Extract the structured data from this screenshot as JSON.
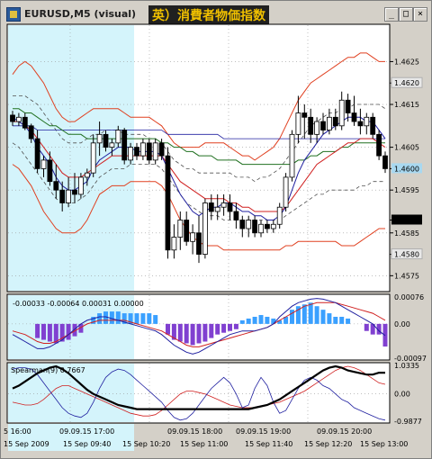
{
  "window": {
    "title": "EURUSD,M5 (visual)",
    "banner": "英）消費者物価指数",
    "buttons": {
      "minimize": "_",
      "maximize": "□",
      "close": "×"
    }
  },
  "colors": {
    "background": "#ffffff",
    "highlight": "#d4f4fb",
    "bull": "#ffffff",
    "bear": "#000000",
    "envelope": "#e04020",
    "ma_blue": "#2020a0",
    "ma_red": "#d02020",
    "ma_green": "#207020",
    "hist_blue": "#3aa0ff",
    "hist_purple": "#8040d0",
    "spearman": "#000000",
    "current_price_bg": "#a8d8f0",
    "selected_price_bg": "#000000"
  },
  "main_chart": {
    "price_labels": [
      "1.4625",
      "1.4620",
      "1.4615",
      "1.4605",
      "1.4600",
      "1.4595",
      "1.4588",
      "1.4585",
      "1.4580",
      "1.4575"
    ],
    "price_values": [
      1.4625,
      1.462,
      1.4615,
      1.4605,
      1.46,
      1.4595,
      1.4588,
      1.4585,
      1.458,
      1.4575
    ],
    "price_label_styles": [
      "plain",
      "grey",
      "plain",
      "plain",
      "current",
      "plain",
      "selected",
      "plain",
      "grey",
      "plain"
    ],
    "ylim": [
      1.45715,
      1.46335
    ]
  },
  "indicator1": {
    "label": "-0.00033 -0.00064 0.00031 0.00000",
    "scale_labels": [
      "0.00076",
      "0.00",
      "-0.00097"
    ]
  },
  "indicator2": {
    "label": "Spearman(9) 0.7667",
    "scale_labels": [
      "1.0335",
      "0.00",
      "-0.9877"
    ]
  },
  "time_axis": {
    "labels": [
      "5 16:00",
      "15 Sep 2009",
      "09.09.15 17:00",
      "15 Sep 09:40",
      "15 Sep 10:20",
      "09.09.15 18:00",
      "15 Sep 11:00",
      "09.09.15 19:00",
      "15 Sep 11:40",
      "15 Sep 12:20",
      "09.09.15 20:00",
      "15 Sep 13:00"
    ]
  },
  "chart_data": {
    "type": "candlestick",
    "price_ylim": [
      1.45715,
      1.46335
    ],
    "candles": [
      {
        "o": 1.46125,
        "h": 1.46135,
        "l": 1.461,
        "c": 1.4611
      },
      {
        "o": 1.4611,
        "h": 1.4613,
        "l": 1.461,
        "c": 1.4612
      },
      {
        "o": 1.4612,
        "h": 1.4613,
        "l": 1.4609,
        "c": 1.46095
      },
      {
        "o": 1.461,
        "h": 1.46105,
        "l": 1.4606,
        "c": 1.4607
      },
      {
        "o": 1.4607,
        "h": 1.4609,
        "l": 1.4599,
        "c": 1.46
      },
      {
        "o": 1.46,
        "h": 1.4603,
        "l": 1.4598,
        "c": 1.4602
      },
      {
        "o": 1.4602,
        "h": 1.4604,
        "l": 1.4596,
        "c": 1.4597
      },
      {
        "o": 1.4597,
        "h": 1.4601,
        "l": 1.4593,
        "c": 1.4595
      },
      {
        "o": 1.4595,
        "h": 1.4597,
        "l": 1.459,
        "c": 1.4592
      },
      {
        "o": 1.4592,
        "h": 1.4598,
        "l": 1.4591,
        "c": 1.4595
      },
      {
        "o": 1.4595,
        "h": 1.4599,
        "l": 1.4592,
        "c": 1.4594
      },
      {
        "o": 1.4594,
        "h": 1.4599,
        "l": 1.4593,
        "c": 1.4598
      },
      {
        "o": 1.4598,
        "h": 1.46,
        "l": 1.4596,
        "c": 1.4599
      },
      {
        "o": 1.4599,
        "h": 1.4608,
        "l": 1.4598,
        "c": 1.4606
      },
      {
        "o": 1.4606,
        "h": 1.4611,
        "l": 1.4603,
        "c": 1.4608
      },
      {
        "o": 1.4608,
        "h": 1.4609,
        "l": 1.4604,
        "c": 1.4605
      },
      {
        "o": 1.4605,
        "h": 1.4607,
        "l": 1.4603,
        "c": 1.4606
      },
      {
        "o": 1.4606,
        "h": 1.461,
        "l": 1.4605,
        "c": 1.4609
      },
      {
        "o": 1.4609,
        "h": 1.46095,
        "l": 1.4601,
        "c": 1.4602
      },
      {
        "o": 1.4602,
        "h": 1.4606,
        "l": 1.4601,
        "c": 1.4605
      },
      {
        "o": 1.4605,
        "h": 1.4606,
        "l": 1.4602,
        "c": 1.4603
      },
      {
        "o": 1.4603,
        "h": 1.4607,
        "l": 1.4602,
        "c": 1.4606
      },
      {
        "o": 1.4606,
        "h": 1.4607,
        "l": 1.4601,
        "c": 1.4602
      },
      {
        "o": 1.4602,
        "h": 1.4607,
        "l": 1.4601,
        "c": 1.4606
      },
      {
        "o": 1.4606,
        "h": 1.4607,
        "l": 1.4602,
        "c": 1.4603
      },
      {
        "o": 1.4603,
        "h": 1.4605,
        "l": 1.4579,
        "c": 1.4581
      },
      {
        "o": 1.4581,
        "h": 1.4587,
        "l": 1.4579,
        "c": 1.4584
      },
      {
        "o": 1.4584,
        "h": 1.459,
        "l": 1.4581,
        "c": 1.4588
      },
      {
        "o": 1.4588,
        "h": 1.459,
        "l": 1.4582,
        "c": 1.4583
      },
      {
        "o": 1.4583,
        "h": 1.4587,
        "l": 1.458,
        "c": 1.4585
      },
      {
        "o": 1.4585,
        "h": 1.4589,
        "l": 1.4578,
        "c": 1.458
      },
      {
        "o": 1.458,
        "h": 1.4593,
        "l": 1.4579,
        "c": 1.4592
      },
      {
        "o": 1.4592,
        "h": 1.4594,
        "l": 1.4588,
        "c": 1.459
      },
      {
        "o": 1.459,
        "h": 1.4594,
        "l": 1.4588,
        "c": 1.4591
      },
      {
        "o": 1.4591,
        "h": 1.4594,
        "l": 1.4589,
        "c": 1.4592
      },
      {
        "o": 1.4592,
        "h": 1.4594,
        "l": 1.4588,
        "c": 1.459
      },
      {
        "o": 1.459,
        "h": 1.4592,
        "l": 1.4586,
        "c": 1.4588
      },
      {
        "o": 1.4588,
        "h": 1.4589,
        "l": 1.4584,
        "c": 1.4586
      },
      {
        "o": 1.4586,
        "h": 1.4589,
        "l": 1.4584,
        "c": 1.4588
      },
      {
        "o": 1.4588,
        "h": 1.4589,
        "l": 1.4584,
        "c": 1.4585
      },
      {
        "o": 1.4585,
        "h": 1.4588,
        "l": 1.4584,
        "c": 1.4587
      },
      {
        "o": 1.4587,
        "h": 1.4588,
        "l": 1.4585,
        "c": 1.4586
      },
      {
        "o": 1.4586,
        "h": 1.4588,
        "l": 1.4585,
        "c": 1.4587
      },
      {
        "o": 1.4587,
        "h": 1.4592,
        "l": 1.4586,
        "c": 1.4591
      },
      {
        "o": 1.4591,
        "h": 1.4599,
        "l": 1.459,
        "c": 1.4598
      },
      {
        "o": 1.4598,
        "h": 1.4609,
        "l": 1.4597,
        "c": 1.4608
      },
      {
        "o": 1.4608,
        "h": 1.4617,
        "l": 1.4606,
        "c": 1.4613
      },
      {
        "o": 1.4613,
        "h": 1.4615,
        "l": 1.4607,
        "c": 1.4612
      },
      {
        "o": 1.4612,
        "h": 1.4614,
        "l": 1.4606,
        "c": 1.4608
      },
      {
        "o": 1.4608,
        "h": 1.4612,
        "l": 1.4606,
        "c": 1.4611
      },
      {
        "o": 1.4611,
        "h": 1.4613,
        "l": 1.4608,
        "c": 1.4609
      },
      {
        "o": 1.4609,
        "h": 1.4614,
        "l": 1.4608,
        "c": 1.4612
      },
      {
        "o": 1.4612,
        "h": 1.4614,
        "l": 1.4609,
        "c": 1.461
      },
      {
        "o": 1.461,
        "h": 1.4618,
        "l": 1.4609,
        "c": 1.4616
      },
      {
        "o": 1.4616,
        "h": 1.46175,
        "l": 1.4611,
        "c": 1.4613
      },
      {
        "o": 1.4613,
        "h": 1.4617,
        "l": 1.461,
        "c": 1.4611
      },
      {
        "o": 1.4611,
        "h": 1.4614,
        "l": 1.4608,
        "c": 1.461
      },
      {
        "o": 1.461,
        "h": 1.4613,
        "l": 1.4608,
        "c": 1.4612
      },
      {
        "o": 1.4612,
        "h": 1.4613,
        "l": 1.4607,
        "c": 1.4608
      },
      {
        "o": 1.4608,
        "h": 1.4609,
        "l": 1.4602,
        "c": 1.4603
      },
      {
        "o": 1.4603,
        "h": 1.4604,
        "l": 1.4599,
        "c": 1.46
      }
    ],
    "env_upper": [
      1.4622,
      1.4624,
      1.4625,
      1.4624,
      1.4622,
      1.462,
      1.4617,
      1.4614,
      1.4612,
      1.4611,
      1.4611,
      1.4612,
      1.4613,
      1.4614,
      1.4614,
      1.4614,
      1.4614,
      1.4614,
      1.4613,
      1.4612,
      1.4612,
      1.4612,
      1.4612,
      1.4611,
      1.461,
      1.4608,
      1.4606,
      1.4605,
      1.4605,
      1.4605,
      1.4605,
      1.4606,
      1.4606,
      1.4606,
      1.4606,
      1.4605,
      1.4604,
      1.4603,
      1.4603,
      1.4602,
      1.4603,
      1.4604,
      1.4605,
      1.4607,
      1.461,
      1.4613,
      1.4616,
      1.4618,
      1.462,
      1.4621,
      1.4622,
      1.4623,
      1.4624,
      1.4625,
      1.4626,
      1.4626,
      1.4627,
      1.4627,
      1.4626,
      1.4625,
      1.4625
    ],
    "env_lower": [
      1.4601,
      1.46,
      1.4598,
      1.4596,
      1.4593,
      1.459,
      1.4588,
      1.4586,
      1.4585,
      1.4585,
      1.4585,
      1.4586,
      1.4588,
      1.4591,
      1.4594,
      1.4595,
      1.4596,
      1.4596,
      1.4596,
      1.4597,
      1.4597,
      1.4597,
      1.4597,
      1.4597,
      1.4596,
      1.4594,
      1.4591,
      1.4588,
      1.4586,
      1.4584,
      1.4583,
      1.4582,
      1.4582,
      1.4582,
      1.4581,
      1.4581,
      1.4581,
      1.4581,
      1.4581,
      1.4581,
      1.4581,
      1.4581,
      1.4581,
      1.4581,
      1.4582,
      1.4582,
      1.4583,
      1.4583,
      1.4583,
      1.4583,
      1.4583,
      1.4583,
      1.4583,
      1.4582,
      1.4582,
      1.4582,
      1.4583,
      1.4584,
      1.4585,
      1.4586,
      1.4586
    ],
    "env_mid_upper": [
      1.4617,
      1.4617,
      1.4617,
      1.4616,
      1.4615,
      1.4613,
      1.4611,
      1.4609,
      1.4607,
      1.4606,
      1.4606,
      1.4606,
      1.4607,
      1.4608,
      1.4608,
      1.4609,
      1.4609,
      1.4609,
      1.4608,
      1.4608,
      1.4608,
      1.4608,
      1.4607,
      1.4607,
      1.4606,
      1.4604,
      1.4602,
      1.4601,
      1.46,
      1.46,
      1.4599,
      1.4599,
      1.4599,
      1.4599,
      1.4599,
      1.4599,
      1.4598,
      1.4598,
      1.4598,
      1.4597,
      1.4598,
      1.4598,
      1.4599,
      1.46,
      1.4602,
      1.4604,
      1.4606,
      1.4608,
      1.461,
      1.4611,
      1.4612,
      1.4613,
      1.4613,
      1.4614,
      1.4614,
      1.4615,
      1.4615,
      1.4615,
      1.4615,
      1.4615,
      1.4614
    ],
    "env_mid_lower": [
      1.4606,
      1.4605,
      1.4603,
      1.4601,
      1.4599,
      1.4597,
      1.4595,
      1.4593,
      1.4592,
      1.4592,
      1.4592,
      1.4593,
      1.4594,
      1.4596,
      1.4598,
      1.4599,
      1.46,
      1.46,
      1.46,
      1.4601,
      1.4601,
      1.4601,
      1.4601,
      1.4601,
      1.46,
      1.4598,
      1.4596,
      1.4594,
      1.4592,
      1.4591,
      1.459,
      1.4589,
      1.4589,
      1.4589,
      1.4588,
      1.4588,
      1.4588,
      1.4588,
      1.4588,
      1.4588,
      1.4588,
      1.4588,
      1.4588,
      1.4588,
      1.4589,
      1.459,
      1.4591,
      1.4592,
      1.4593,
      1.4594,
      1.4594,
      1.4595,
      1.4595,
      1.4595,
      1.4595,
      1.4595,
      1.4596,
      1.4596,
      1.4597,
      1.4597,
      1.4597
    ],
    "ma_blue": [
      1.4612,
      1.4611,
      1.461,
      1.4608,
      1.4605,
      1.4603,
      1.4601,
      1.4598,
      1.4596,
      1.4595,
      1.4595,
      1.4596,
      1.4597,
      1.46,
      1.4602,
      1.4603,
      1.4604,
      1.4605,
      1.4605,
      1.4605,
      1.4604,
      1.4604,
      1.4604,
      1.4604,
      1.4603,
      1.46,
      1.4597,
      1.4594,
      1.4592,
      1.459,
      1.4589,
      1.459,
      1.4591,
      1.4591,
      1.4592,
      1.4592,
      1.4591,
      1.459,
      1.459,
      1.4589,
      1.4589,
      1.4588,
      1.4588,
      1.4589,
      1.4591,
      1.4595,
      1.4599,
      1.4602,
      1.4604,
      1.4606,
      1.4608,
      1.4609,
      1.461,
      1.4611,
      1.4612,
      1.4612,
      1.4612,
      1.4611,
      1.4611,
      1.4609,
      1.4607
    ],
    "ma_red": [
      1.4611,
      1.4611,
      1.461,
      1.4609,
      1.4607,
      1.4605,
      1.4603,
      1.4601,
      1.4599,
      1.4598,
      1.4598,
      1.4598,
      1.4599,
      1.46,
      1.4601,
      1.4602,
      1.4603,
      1.4603,
      1.4603,
      1.4603,
      1.4603,
      1.4603,
      1.4603,
      1.4603,
      1.4603,
      1.4601,
      1.4599,
      1.4597,
      1.4596,
      1.4595,
      1.4594,
      1.4593,
      1.4593,
      1.4593,
      1.4593,
      1.4592,
      1.4592,
      1.4591,
      1.4591,
      1.459,
      1.459,
      1.459,
      1.459,
      1.459,
      1.4591,
      1.4593,
      1.4595,
      1.4597,
      1.4599,
      1.4601,
      1.4602,
      1.4603,
      1.4604,
      1.4605,
      1.4606,
      1.4606,
      1.4607,
      1.4607,
      1.4607,
      1.4606,
      1.4605
    ],
    "ma_green": [
      1.4614,
      1.4614,
      1.4613,
      1.4613,
      1.4612,
      1.4611,
      1.461,
      1.461,
      1.4609,
      1.4608,
      1.4608,
      1.4608,
      1.4607,
      1.4607,
      1.4607,
      1.4607,
      1.4607,
      1.4607,
      1.4607,
      1.4607,
      1.4607,
      1.4607,
      1.4607,
      1.4607,
      1.4606,
      1.4606,
      1.4605,
      1.4605,
      1.4604,
      1.4604,
      1.4603,
      1.4603,
      1.4603,
      1.4602,
      1.4602,
      1.4602,
      1.4602,
      1.4601,
      1.4601,
      1.4601,
      1.4601,
      1.4601,
      1.4601,
      1.4601,
      1.4601,
      1.4601,
      1.4602,
      1.4602,
      1.4603,
      1.4603,
      1.4604,
      1.4604,
      1.4604,
      1.4605,
      1.4605,
      1.4606,
      1.4606,
      1.4606,
      1.4606,
      1.4606,
      1.4606
    ],
    "ma_blue2": [
      1.461,
      1.461,
      1.461,
      1.461,
      1.4609,
      1.4609,
      1.4609,
      1.4609,
      1.4609,
      1.4609,
      1.4609,
      1.4609,
      1.4609,
      1.4609,
      1.4609,
      1.4609,
      1.4609,
      1.4609,
      1.4609,
      1.4609,
      1.4609,
      1.4609,
      1.4609,
      1.4609,
      1.4609,
      1.4608,
      1.4608,
      1.4608,
      1.4608,
      1.4608,
      1.4608,
      1.4608,
      1.4608,
      1.4608,
      1.4607,
      1.4607,
      1.4607,
      1.4607,
      1.4607,
      1.4607,
      1.4607,
      1.4607,
      1.4607,
      1.4607,
      1.4607,
      1.4607,
      1.4607,
      1.4607,
      1.4607,
      1.4607,
      1.4607,
      1.4607,
      1.4607,
      1.4607,
      1.4607,
      1.4607,
      1.4607,
      1.4607,
      1.4607,
      1.4607,
      1.4607
    ],
    "hist": [
      0.0,
      0.0,
      0.0,
      0.0,
      -0.0004,
      -0.00045,
      -0.0005,
      -0.00055,
      -0.0005,
      -0.00045,
      -0.00035,
      -0.00025,
      0.0,
      0.0002,
      0.0003,
      0.00035,
      0.00035,
      0.00035,
      0.0003,
      0.0003,
      0.0003,
      0.0003,
      0.0003,
      0.00025,
      0.0,
      -0.0003,
      -0.00045,
      -0.0005,
      -0.00055,
      -0.0006,
      -0.00055,
      -0.0005,
      -0.0004,
      -0.0003,
      -0.00025,
      -0.0002,
      -0.00015,
      0.0001,
      0.00015,
      0.0002,
      0.00025,
      0.0002,
      0.00015,
      0.0001,
      0.0002,
      0.0004,
      0.0005,
      0.00055,
      0.0006,
      0.0005,
      0.0004,
      0.0003,
      0.0002,
      0.0002,
      0.00015,
      0.0,
      0.0,
      -0.0002,
      -0.0003,
      -0.0003,
      -0.00064
    ],
    "osc_red": [
      -0.0002,
      -0.00025,
      -0.0003,
      -0.0004,
      -0.0005,
      -0.00055,
      -0.00055,
      -0.0005,
      -0.0004,
      -0.0003,
      -0.0002,
      -0.0001,
      0.0,
      5e-05,
      0.0001,
      0.0001,
      0.0001,
      0.0001,
      0.0001,
      5e-05,
      0.0,
      -5e-05,
      -0.0001,
      -0.00015,
      -0.0002,
      -0.0003,
      -0.0004,
      -0.0005,
      -0.0006,
      -0.00065,
      -0.00065,
      -0.0006,
      -0.00055,
      -0.0005,
      -0.00045,
      -0.0004,
      -0.00035,
      -0.0003,
      -0.00025,
      -0.0002,
      -0.00015,
      -0.0001,
      0.0,
      0.0001,
      0.0002,
      0.0003,
      0.0004,
      0.0005,
      0.00055,
      0.0006,
      0.0006,
      0.0006,
      0.0006,
      0.00055,
      0.0005,
      0.00045,
      0.0004,
      0.00035,
      0.0003,
      0.0002,
      0.0001
    ],
    "osc_blue": [
      -0.0003,
      -0.0004,
      -0.0005,
      -0.0006,
      -0.0007,
      -0.0007,
      -0.00065,
      -0.00055,
      -0.00045,
      -0.0003,
      -0.00015,
      0.0,
      0.0001,
      0.00015,
      0.0002,
      0.0002,
      0.00015,
      0.0001,
      5e-05,
      0.0,
      -5e-05,
      -0.0001,
      -0.00015,
      -0.0002,
      -0.0003,
      -0.00045,
      -0.0006,
      -0.0007,
      -0.0008,
      -0.00085,
      -0.0008,
      -0.0007,
      -0.0006,
      -0.0005,
      -0.0004,
      -0.0003,
      -0.00025,
      -0.0002,
      -0.0002,
      -0.0002,
      -0.00015,
      -0.0001,
      0.0,
      0.0002,
      0.00035,
      0.0005,
      0.0006,
      0.00065,
      0.0007,
      0.00072,
      0.0007,
      0.00065,
      0.0006,
      0.0005,
      0.0004,
      0.0003,
      0.0002,
      0.0001,
      0.0,
      -0.0002,
      -0.00033
    ],
    "spearman": [
      0.2,
      0.3,
      0.45,
      0.6,
      0.75,
      0.85,
      0.95,
      1.0,
      0.9,
      0.75,
      0.55,
      0.35,
      0.15,
      0.0,
      -0.1,
      -0.2,
      -0.3,
      -0.4,
      -0.45,
      -0.5,
      -0.55,
      -0.55,
      -0.55,
      -0.55,
      -0.55,
      -0.55,
      -0.55,
      -0.55,
      -0.55,
      -0.55,
      -0.55,
      -0.55,
      -0.55,
      -0.55,
      -0.55,
      -0.55,
      -0.55,
      -0.55,
      -0.55,
      -0.5,
      -0.45,
      -0.4,
      -0.3,
      -0.2,
      -0.05,
      0.1,
      0.25,
      0.4,
      0.55,
      0.7,
      0.85,
      0.95,
      1.0,
      0.95,
      0.85,
      0.8,
      0.75,
      0.7,
      0.7,
      0.77,
      0.77
    ],
    "spear_red": [
      -0.3,
      -0.35,
      -0.4,
      -0.4,
      -0.35,
      -0.2,
      0.0,
      0.2,
      0.3,
      0.3,
      0.2,
      0.1,
      0.0,
      -0.1,
      -0.2,
      -0.3,
      -0.4,
      -0.5,
      -0.6,
      -0.7,
      -0.75,
      -0.8,
      -0.8,
      -0.75,
      -0.6,
      -0.4,
      -0.2,
      0.0,
      0.1,
      0.1,
      0.05,
      0.0,
      -0.1,
      -0.2,
      -0.3,
      -0.4,
      -0.45,
      -0.5,
      -0.5,
      -0.5,
      -0.45,
      -0.4,
      -0.35,
      -0.3,
      -0.2,
      -0.1,
      0.0,
      0.1,
      0.25,
      0.4,
      0.55,
      0.7,
      0.85,
      0.95,
      1.0,
      0.95,
      0.85,
      0.7,
      0.55,
      0.4,
      0.35
    ],
    "spear_blue": [
      0.9,
      0.95,
      0.95,
      0.9,
      0.7,
      0.4,
      0.1,
      -0.2,
      -0.5,
      -0.7,
      -0.8,
      -0.85,
      -0.7,
      -0.3,
      0.2,
      0.6,
      0.8,
      0.9,
      0.85,
      0.7,
      0.5,
      0.3,
      0.1,
      -0.1,
      -0.3,
      -0.6,
      -0.85,
      -0.95,
      -0.9,
      -0.7,
      -0.4,
      -0.1,
      0.2,
      0.4,
      0.6,
      0.4,
      0.0,
      -0.5,
      -0.4,
      0.2,
      0.6,
      0.3,
      -0.3,
      -0.7,
      -0.6,
      -0.2,
      0.2,
      0.5,
      0.6,
      0.5,
      0.3,
      0.2,
      0.0,
      -0.2,
      -0.3,
      -0.5,
      -0.6,
      -0.7,
      -0.8,
      -0.9,
      -0.95
    ]
  }
}
